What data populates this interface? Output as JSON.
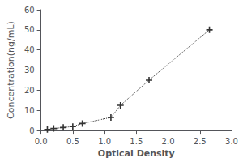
{
  "chart_data": {
    "type": "line",
    "xlabel": "Optical Density",
    "ylabel": "Concentration(ng/mL)",
    "x": [
      0.1,
      0.2,
      0.35,
      0.5,
      0.65,
      1.1,
      1.25,
      1.7,
      2.65
    ],
    "values": [
      0.5,
      1.0,
      1.5,
      2.0,
      3.5,
      6.5,
      12.5,
      25.0,
      50.0
    ],
    "color": "#333333",
    "marker": "plus",
    "line_style": "dotted",
    "xlim": [
      0,
      3
    ],
    "ylim": [
      0,
      60
    ],
    "xticks": [
      {
        "value": 0,
        "label": "0.0"
      },
      0.5,
      {
        "value": 1,
        "label": "1.0"
      },
      1.5,
      {
        "value": 2,
        "label": "2.0"
      },
      2.5,
      {
        "value": 3,
        "label": "3.0"
      }
    ],
    "yticks": [
      0,
      10,
      20,
      30,
      40,
      50,
      60
    ],
    "grid": false
  }
}
